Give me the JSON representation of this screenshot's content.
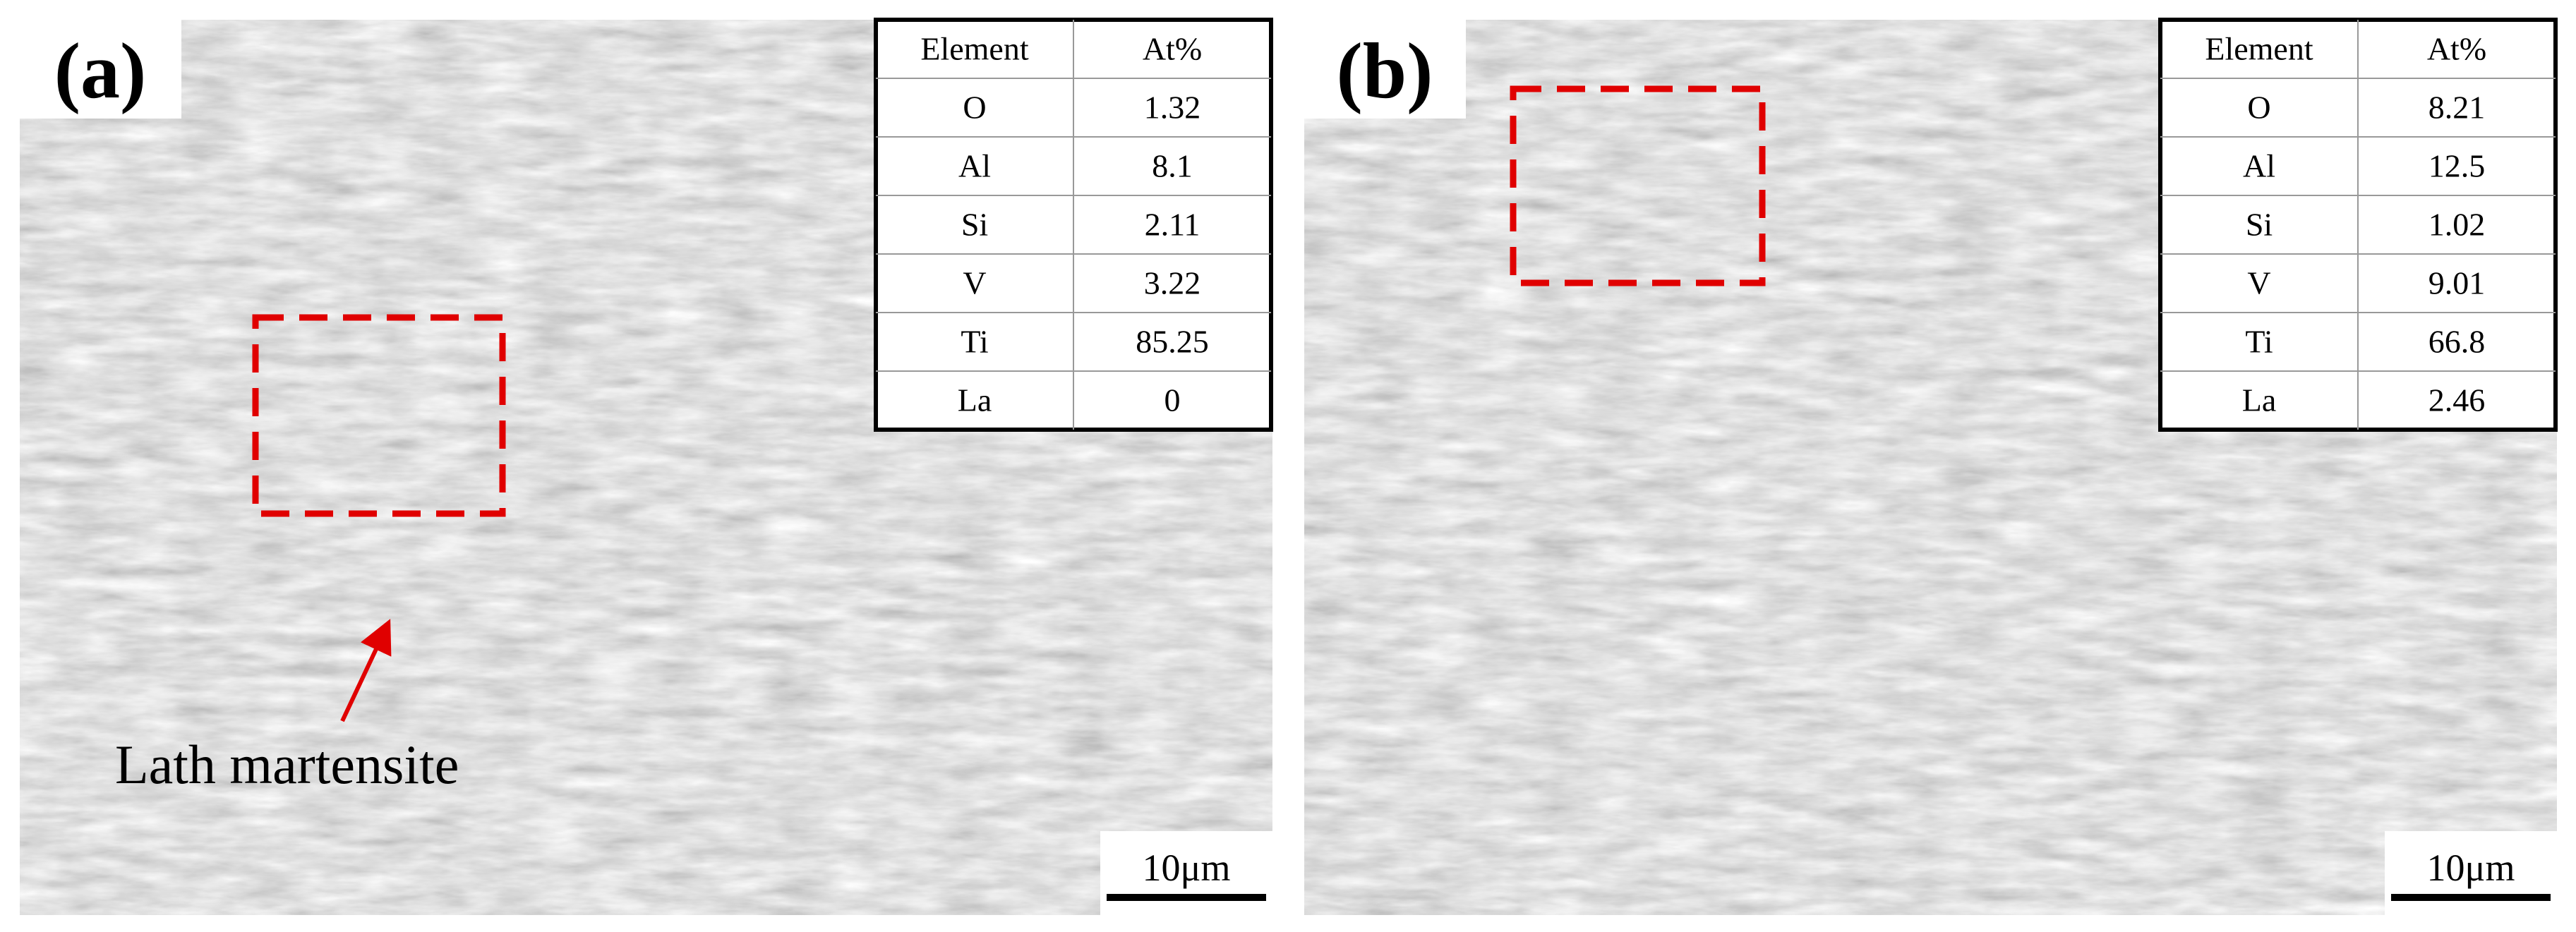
{
  "panels": [
    {
      "label": "(a)",
      "table": {
        "header": [
          "Element",
          "At%"
        ],
        "rows": [
          [
            "O",
            "1.32"
          ],
          [
            "Al",
            "8.1"
          ],
          [
            "Si",
            "2.11"
          ],
          [
            "V",
            "3.22"
          ],
          [
            "Ti",
            "85.25"
          ],
          [
            "La",
            "0"
          ]
        ]
      },
      "annotation": "Lath martensite",
      "scale_bar": "10μm"
    },
    {
      "label": "(b)",
      "table": {
        "header": [
          "Element",
          "At%"
        ],
        "rows": [
          [
            "O",
            "8.21"
          ],
          [
            "Al",
            "12.5"
          ],
          [
            "Si",
            "1.02"
          ],
          [
            "V",
            "9.01"
          ],
          [
            "Ti",
            "66.8"
          ],
          [
            "La",
            "2.46"
          ]
        ]
      },
      "scale_bar": "10μm"
    }
  ]
}
